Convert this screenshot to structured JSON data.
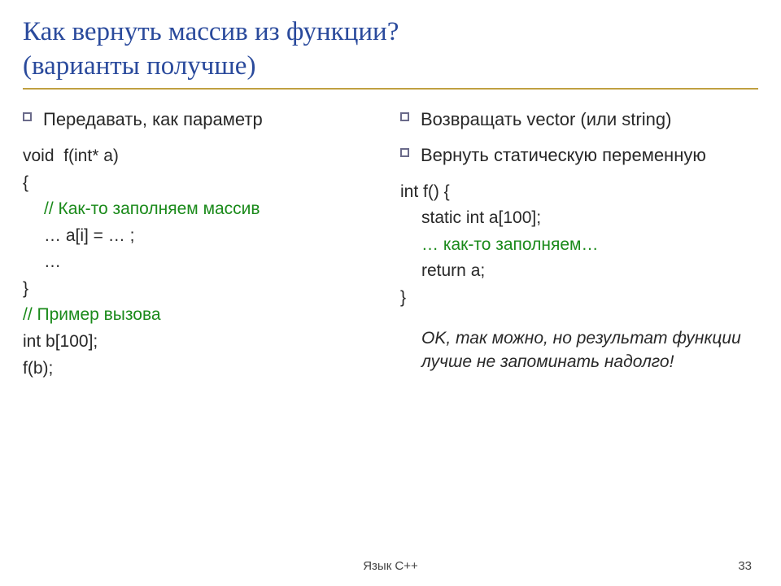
{
  "colors": {
    "title": "#2a4a9c",
    "rule": "#c0a040",
    "bullet_border": "#6a6a8a",
    "comment": "#1a8a1a",
    "text": "#282828"
  },
  "fonts": {
    "title_size": 33,
    "bullet_size": 22,
    "code_size": 21,
    "note_size": 21,
    "footer_size": 15
  },
  "title_line1": "Как вернуть массив из функции?",
  "title_line2": "(варианты получше)",
  "left": {
    "bullet1": "Передавать, как параметр",
    "l1": "void  f(int* a)",
    "l2": "{",
    "l3": "// Как-то заполняем массив",
    "l4": "… a[i] = … ;",
    "l5": "…",
    "l6": "}",
    "l7": "",
    "l8": "// Пример вызова",
    "l9": "int b[100];",
    "l10": "f(b);"
  },
  "right": {
    "bullet1": "Возвращать vector (или string)",
    "bullet2": "Вернуть статическую переменную",
    "l1": "int f() {",
    "l2": "static int a[100];",
    "l3a": "… как-то заполняем…",
    "l3b": "return a;",
    "l4": "}",
    "note": "OK, так можно, но результат функции лучше не запоминать надолго!"
  },
  "footer": "Язык С++",
  "page": "33"
}
